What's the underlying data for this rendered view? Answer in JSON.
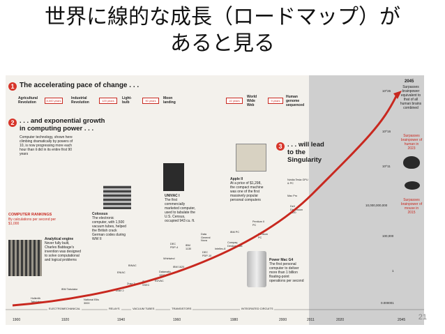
{
  "slide": {
    "title_line1": "世界に線的な成長（ロードマップ）が",
    "title_line2": "あると見る",
    "page_number": "21"
  },
  "figure": {
    "section1": {
      "num": "1",
      "heading": "The accelerating pace of change . . ."
    },
    "timeline": [
      {
        "label": "Agricultural Revolution"
      },
      {
        "gap": "8,000 years"
      },
      {
        "label": "Industrial Revolution"
      },
      {
        "gap": "120 years"
      },
      {
        "label": "Light-bulb"
      },
      {
        "gap": "90 years"
      },
      {
        "label": "Moon landing"
      },
      {
        "gap": "22 years"
      },
      {
        "label": "World Wide Web"
      },
      {
        "gap": "9 years"
      },
      {
        "label": "Human genome sequenced"
      }
    ],
    "section2": {
      "num": "2",
      "heading_line1": ". . . and exponential growth",
      "heading_line2": "in computing power . . .",
      "desc": "Computer technology, shown here climbing dramatically by powers of 10, is now progressing more each hour than it did in its entire first 90 years"
    },
    "section3": {
      "num": "3",
      "heading_line1": ". . . will lead",
      "heading_line2": "to the",
      "heading_line3": "Singularity"
    },
    "rankings": {
      "title": "COMPUTER RANKINGS",
      "subtitle": "By calculations per second per $1,000"
    },
    "callouts": {
      "analytical": {
        "title": "Analytical engine",
        "text": "Never fully built, Charles Babbage's invention was designed to solve computational and logical problems"
      },
      "colossus": {
        "title": "Colossus",
        "text": "The electronic computer, with 1,500 vacuum tubes, helped the British crack German codes during WW II"
      },
      "univac": {
        "title": "UNIVAC I",
        "text": "The first commercially marketed computer, used to tabulate the U.S. Census, occupied 943 cu. ft."
      },
      "apple": {
        "title": "Apple II",
        "text": "At a price of $1,298, the compact machine was one of the first massively popular personal computers"
      },
      "powermac": {
        "title": "Power Mac G4",
        "text": "The first personal computer to deliver more than 1 billion floating-point operations per second"
      }
    },
    "machines": [
      "Hollerith Tabulator",
      "IBM Tabulator",
      "National Ellis 3000",
      "Zuse 2",
      "Zuse 3",
      "ENIAC",
      "BINAC",
      "IBM SSEC",
      "EDVAC",
      "Whirlwind",
      "IBM 1620",
      "DEC PDP-4",
      "IBM 1130",
      "Data General Nova",
      "DEC PDP-10",
      "Intellec-8",
      "Compaq Deskpro 386",
      "IBM PC",
      "Pentium II PC",
      "Pentium PC",
      "Dell Dimension 8400",
      "Mac Pro",
      "Nvidia Tesla GPU & PC",
      "Datamatic 1000"
    ],
    "yaxis": [
      "10^26",
      "10^16",
      "10^11",
      "10,000,000,000",
      "100,000",
      "1",
      "0.000001"
    ],
    "right_notes": {
      "year": "2045",
      "note1": "Surpasses brainpower equivalent to that of all human brains combined",
      "note2": "Surpasses brainpower of human in 2023",
      "note3": "Surpasses brainpower of mouse in 2015"
    },
    "eras": [
      "ELECTROMECHANICAL",
      "RELAYS",
      "VACUUM TUBES",
      "TRANSISTORS",
      "INTEGRATED CIRCUITS"
    ],
    "years": [
      "1900",
      "1920",
      "1940",
      "1960",
      "1980",
      "2000",
      "2011",
      "2020",
      "2045"
    ]
  },
  "colors": {
    "accent_red": "#d7352a",
    "band_gray": "#cfcfcf",
    "paper": "#f3f1ec"
  }
}
